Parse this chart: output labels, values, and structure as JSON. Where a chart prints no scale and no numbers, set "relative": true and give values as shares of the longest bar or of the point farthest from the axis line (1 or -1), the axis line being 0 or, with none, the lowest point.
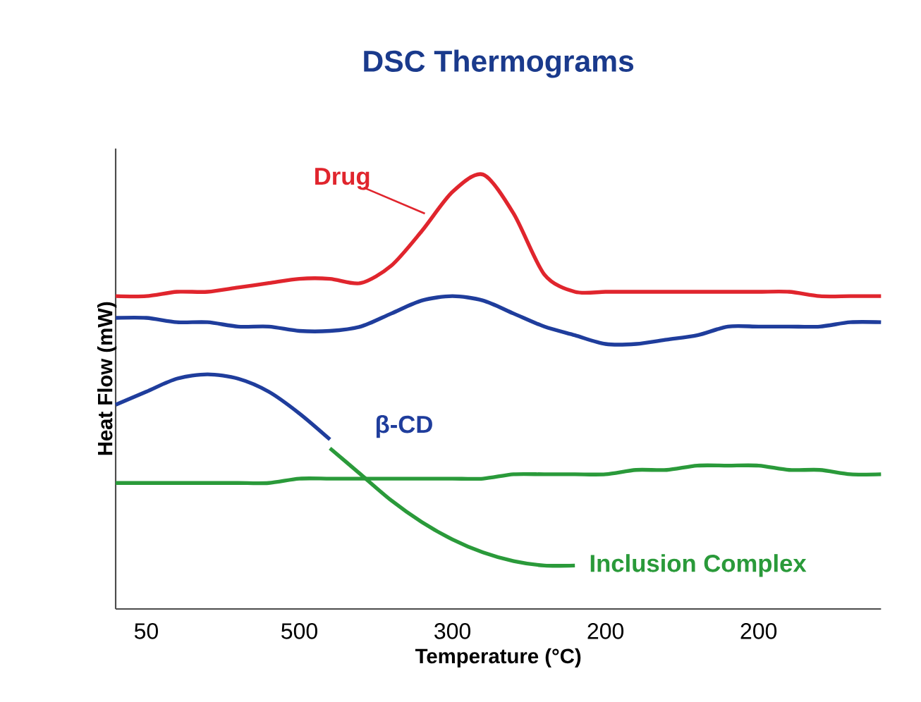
{
  "chart_data": {
    "type": "line",
    "title": "DSC Thermograms",
    "xlabel": "Temperature (°C)",
    "ylabel": "Heat Flow (mW)",
    "relative": true,
    "categories": [
      null,
      "50",
      null,
      null,
      null,
      null,
      "500",
      null,
      null,
      null,
      null,
      "300",
      null,
      null,
      null,
      null,
      "200",
      null,
      null,
      null,
      null,
      "200",
      null,
      null,
      null,
      null
    ],
    "series": [
      {
        "name": "Drug",
        "color": "#e0252d",
        "values": [
          0.72,
          0.72,
          0.73,
          0.73,
          0.74,
          0.75,
          0.76,
          0.76,
          0.75,
          0.79,
          0.87,
          0.96,
          1.0,
          0.91,
          0.77,
          0.73,
          0.73,
          0.73,
          0.73,
          0.73,
          0.73,
          0.73,
          0.73,
          0.72,
          0.72,
          0.72
        ]
      },
      {
        "color": "#1f3d9c",
        "values": [
          0.67,
          0.67,
          0.66,
          0.66,
          0.65,
          0.65,
          0.64,
          0.64,
          0.65,
          0.68,
          0.71,
          0.72,
          0.71,
          0.68,
          0.65,
          0.63,
          0.61,
          0.61,
          0.62,
          0.63,
          0.65,
          0.65,
          0.65,
          0.65,
          0.66,
          0.66
        ]
      },
      {
        "name": "β-CD",
        "color": "#1f3d9c",
        "values": [
          0.47,
          0.5,
          0.53,
          0.54,
          0.53,
          0.5,
          0.45,
          0.39,
          null,
          null,
          null,
          null,
          null,
          null,
          null,
          null,
          null,
          null,
          null,
          null,
          null,
          null,
          null,
          null,
          null,
          null
        ]
      },
      {
        "color": "#2a9a3a",
        "values": [
          0.29,
          0.29,
          0.29,
          0.29,
          0.29,
          0.29,
          0.3,
          0.3,
          0.3,
          0.3,
          0.3,
          0.3,
          0.3,
          0.31,
          0.31,
          0.31,
          0.31,
          0.32,
          0.32,
          0.33,
          0.33,
          0.33,
          0.32,
          0.32,
          0.31,
          0.31
        ]
      },
      {
        "name": "Inclusion Complex",
        "color": "#2a9a3a",
        "values": [
          null,
          null,
          null,
          null,
          null,
          null,
          null,
          0.37,
          0.31,
          0.25,
          0.2,
          0.16,
          0.13,
          0.11,
          0.1,
          0.1,
          null,
          null,
          null,
          null,
          null,
          null,
          null,
          null,
          null,
          null
        ]
      }
    ]
  }
}
